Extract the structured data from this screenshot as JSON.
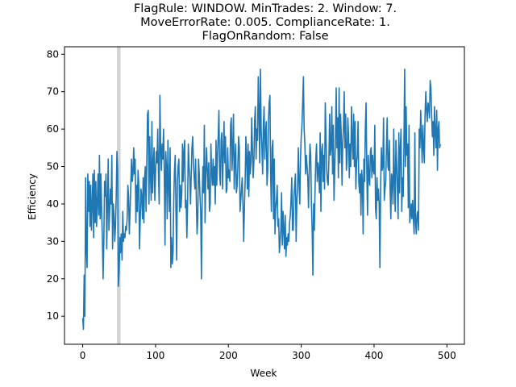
{
  "chart_data": {
    "type": "line",
    "title_lines": [
      "FlagRule: WINDOW. MinTrades: 2. Window: 7.",
      "MoveErrorRate: 0.005. ComplianceRate: 1.",
      "FlagOnRandom: False"
    ],
    "xlabel": "Week",
    "ylabel": "Efficiency",
    "xlim": [
      -25,
      524
    ],
    "ylim": [
      2.5,
      82
    ],
    "xticks": [
      0,
      100,
      200,
      300,
      400,
      500
    ],
    "yticks": [
      10,
      20,
      30,
      40,
      50,
      60,
      70,
      80
    ],
    "grid": false,
    "line_color": "#1f77b4",
    "shaded_region": {
      "x_start": 47,
      "x_end": 52,
      "color": "#d3d3d3"
    },
    "series": [
      {
        "values": [
          9.5,
          6.5,
          21,
          10,
          47,
          28,
          23,
          48,
          38,
          46,
          34,
          45,
          33,
          40,
          48,
          31,
          49,
          35,
          46,
          34,
          40,
          48,
          37,
          53,
          36,
          48,
          38,
          31,
          20,
          30,
          46,
          42,
          48,
          28,
          40,
          52,
          33,
          38,
          44,
          40,
          53,
          28,
          40,
          37,
          30,
          34,
          42,
          54,
          49,
          18,
          22,
          31,
          27,
          32,
          25,
          38,
          30,
          32,
          31,
          34,
          33,
          36,
          45,
          42,
          32,
          38,
          45,
          52,
          46,
          48,
          55,
          48,
          52,
          35,
          45,
          38,
          49,
          45,
          28,
          36,
          44,
          42,
          36,
          47,
          35,
          47,
          50,
          38,
          51,
          64,
          65,
          40,
          58,
          48,
          41,
          62,
          43,
          51,
          55,
          41,
          48,
          54,
          51,
          60,
          48,
          40,
          69,
          55,
          49,
          56,
          52,
          60,
          48,
          29,
          54,
          50,
          36,
          57,
          45,
          38,
          55,
          23,
          31,
          24,
          27,
          41,
          49,
          53,
          38,
          25,
          46,
          50,
          52,
          38,
          45,
          39,
          43,
          56,
          46,
          54,
          57,
          39,
          41,
          31,
          40,
          56,
          50,
          47,
          40,
          48,
          55,
          58,
          51,
          47,
          44,
          52,
          41,
          32,
          36,
          52,
          48,
          42,
          38,
          20,
          41,
          50,
          43,
          61,
          35,
          48,
          55,
          49,
          44,
          51,
          38,
          40,
          56,
          48,
          45,
          52,
          45,
          50,
          40,
          57,
          45,
          53,
          58,
          65,
          48,
          45,
          57,
          59,
          44,
          53,
          62,
          51,
          58,
          43,
          44,
          55,
          47,
          49,
          46,
          61,
          63,
          49,
          55,
          64,
          44,
          52,
          56,
          43,
          45,
          50,
          58,
          55,
          38,
          41,
          44,
          47,
          40,
          30,
          39,
          46,
          58,
          52,
          44,
          56,
          42,
          54,
          48,
          51,
          63,
          55,
          47,
          51,
          62,
          66,
          52,
          60,
          57,
          74,
          65,
          51,
          76,
          60,
          55,
          48,
          61,
          66,
          52,
          59,
          62,
          45,
          49,
          62,
          67,
          69,
          48,
          38,
          55,
          57,
          36,
          52,
          32,
          39,
          41,
          45,
          34,
          36,
          27,
          30,
          33,
          43,
          29,
          38,
          33,
          28,
          37,
          26,
          31,
          29,
          32,
          30,
          35,
          37,
          41,
          47,
          33,
          33,
          42,
          45,
          48,
          30,
          41,
          44,
          55,
          46,
          40,
          52,
          58,
          61,
          67,
          74,
          60,
          56,
          48,
          53,
          50,
          47,
          39,
          49,
          56,
          53,
          40,
          33,
          21,
          40,
          33,
          44,
          52,
          56,
          46,
          51,
          49,
          43,
          59,
          38,
          54,
          56,
          46,
          53,
          44,
          67,
          58,
          49,
          46,
          45,
          52,
          64,
          53,
          55,
          66,
          48,
          61,
          41,
          49,
          58,
          71,
          55,
          63,
          47,
          71,
          51,
          64,
          58,
          45,
          56,
          61,
          70,
          55,
          64,
          49,
          52,
          63,
          58,
          47,
          56,
          50,
          66,
          57,
          52,
          64,
          50,
          62,
          44,
          51,
          53,
          62,
          46,
          43,
          48,
          37,
          49,
          46,
          32,
          52,
          46,
          60,
          67,
          50,
          37,
          53,
          47,
          45,
          54,
          55,
          47,
          53,
          49,
          48,
          61,
          39,
          36,
          47,
          41,
          44,
          40,
          23,
          45,
          55,
          49,
          50,
          63,
          41,
          44,
          46,
          55,
          63,
          50,
          49,
          57,
          44,
          36,
          48,
          47,
          40,
          60,
          46,
          38,
          57,
          51,
          44,
          36,
          59,
          43,
          55,
          60,
          38,
          47,
          42,
          56,
          76,
          50,
          66,
          53,
          56,
          39,
          61,
          35,
          37,
          40,
          36,
          41,
          36,
          32,
          59,
          35,
          32,
          37,
          38,
          33,
          60,
          55,
          65,
          58,
          51,
          61,
          55,
          51,
          64,
          70,
          65,
          62,
          67,
          66,
          63,
          73,
          71,
          64,
          58,
          62,
          53,
          66,
          59,
          55,
          65,
          49,
          60,
          62,
          55,
          56
        ]
      }
    ]
  }
}
